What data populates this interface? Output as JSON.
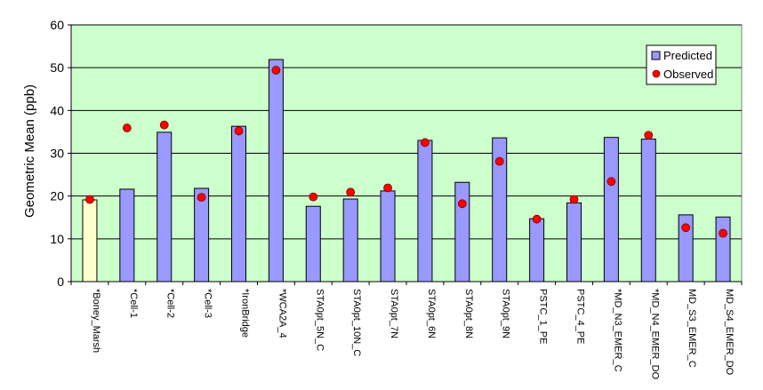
{
  "chart_data": {
    "type": "bar",
    "ylabel": "Geometric Mean (ppb)",
    "xlabel": "",
    "ylim": [
      0,
      60
    ],
    "yticks": [
      0,
      10,
      20,
      30,
      40,
      50,
      60
    ],
    "grid": true,
    "legend_position": "top-right",
    "categories": [
      "*Boney_Marsh",
      "*Cell-1",
      "*Cell-2",
      "*Cell-3",
      "*IronBridge",
      "*WCA2A_4",
      "STA0pt_5N_C",
      "STA0pt_10N_C",
      "STA0pt_7N",
      "STA0pt_6N",
      "STA0pt_8N",
      "STA0pt_9N",
      "PSTC_1_PE",
      "PSTC_4_PE",
      "*MD_N3_EMER_C",
      "*MD_N4_EMER_DO",
      "MD_S3_EMER_C",
      "MD_S4_EMER_DO"
    ],
    "series": [
      {
        "name": "Predicted",
        "kind": "bar",
        "values": [
          19.1,
          21.6,
          34.9,
          21.8,
          36.3,
          51.9,
          17.6,
          19.3,
          21.2,
          33.0,
          23.2,
          33.6,
          14.7,
          18.4,
          33.7,
          33.3,
          15.6,
          15.1
        ]
      },
      {
        "name": "Observed",
        "kind": "marker",
        "values": [
          19.2,
          35.9,
          36.6,
          19.7,
          35.2,
          49.4,
          19.8,
          20.9,
          21.9,
          32.5,
          18.2,
          28.1,
          14.6,
          19.2,
          23.4,
          34.2,
          12.6,
          11.3
        ]
      }
    ],
    "colors": {
      "plot_bg": "#ccffcc",
      "bar": "#9999ff",
      "first_bar": "#ffffcc",
      "marker": "#ff0000",
      "grid": "#000000"
    }
  }
}
